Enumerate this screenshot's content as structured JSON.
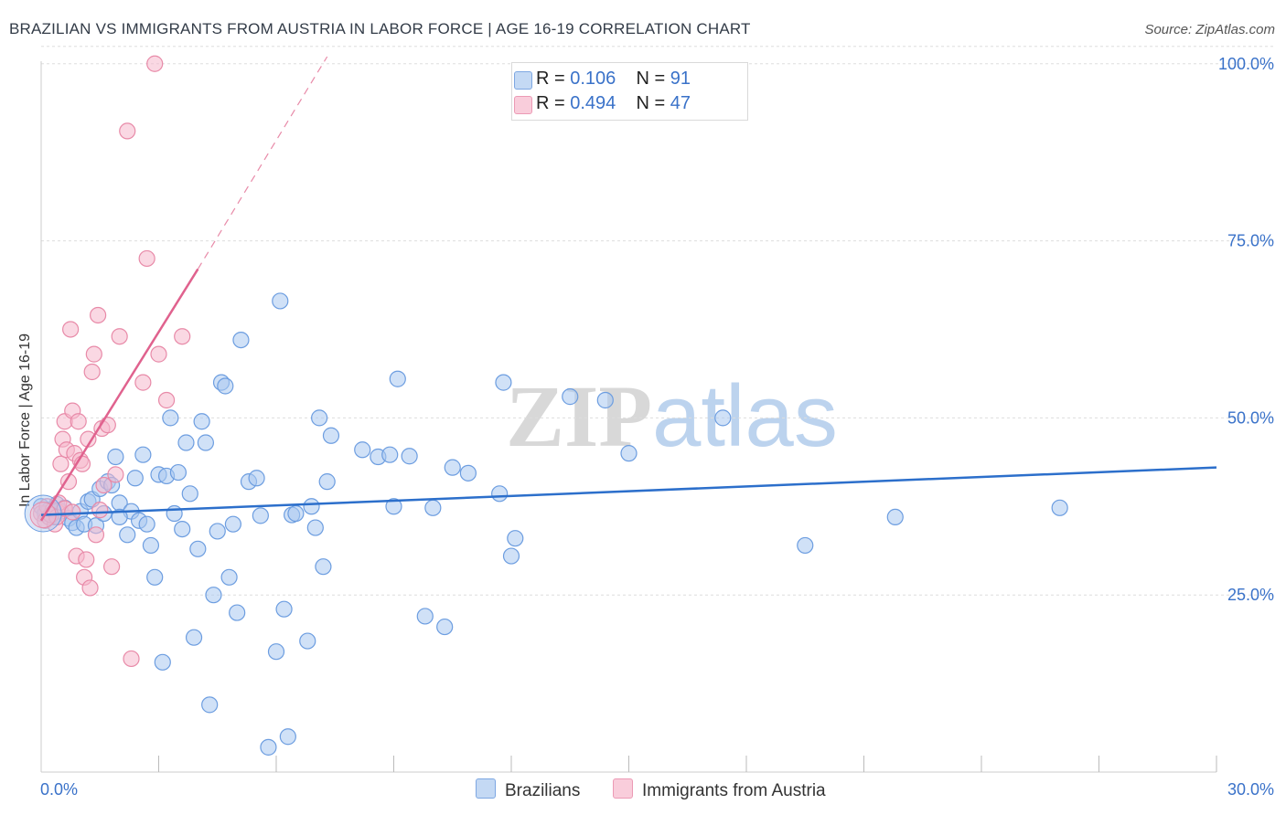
{
  "header": {
    "title": "BRAZILIAN VS IMMIGRANTS FROM AUSTRIA IN LABOR FORCE | AGE 16-19 CORRELATION CHART",
    "source": "Source: ZipAtlas.com"
  },
  "watermark": {
    "part1": "ZIP",
    "part2": "atlas"
  },
  "legend": {
    "rows": [
      {
        "r_label": "R =",
        "r_value": "0.106",
        "n_label": "N =",
        "n_value": "91"
      },
      {
        "r_label": "R =",
        "r_value": "0.494",
        "n_label": "N =",
        "n_value": "47"
      }
    ]
  },
  "bottom_legend": {
    "series1": "Brazilians",
    "series2": "Immigrants from Austria"
  },
  "colors": {
    "blue_fill": "#a9c8f0",
    "blue_stroke": "#6c9de0",
    "blue_line": "#2c6fcb",
    "pink_fill": "#f6b8cc",
    "pink_stroke": "#e88aa8",
    "pink_line": "#e0628e",
    "grid": "#dddddd",
    "tick_text": "#3a72c9"
  },
  "chart_data": {
    "type": "scatter",
    "ylabel": "In Labor Force | Age 16-19",
    "xlim": [
      0,
      30
    ],
    "ylim": [
      0,
      101
    ],
    "x_tick_labels": [
      "0.0%",
      "30.0%"
    ],
    "y_ticks": [
      25,
      50,
      75,
      100
    ],
    "y_tick_labels": [
      "25.0%",
      "50.0%",
      "75.0%",
      "100.0%"
    ],
    "grid": "horizontal dashed",
    "legend_placement": "top-center",
    "series": [
      {
        "name": "Brazilians",
        "color": "#a9c8f0",
        "r": 0.106,
        "n": 91,
        "trend": {
          "x": [
            0,
            30
          ],
          "y": [
            36.3,
            43.0
          ]
        },
        "points": [
          [
            0.0,
            37.5
          ],
          [
            0.1,
            36.5
          ],
          [
            0.2,
            37.0
          ],
          [
            0.3,
            36.0
          ],
          [
            0.4,
            37.8
          ],
          [
            0.5,
            36.8
          ],
          [
            0.6,
            37.3
          ],
          [
            0.7,
            35.8
          ],
          [
            0.8,
            35.2
          ],
          [
            0.9,
            34.5
          ],
          [
            1.0,
            36.8
          ],
          [
            1.1,
            35.0
          ],
          [
            1.2,
            38.2
          ],
          [
            1.3,
            38.5
          ],
          [
            1.4,
            34.8
          ],
          [
            1.5,
            40.0
          ],
          [
            1.6,
            36.5
          ],
          [
            1.7,
            41.0
          ],
          [
            1.8,
            40.5
          ],
          [
            1.9,
            44.5
          ],
          [
            2.0,
            38.0
          ],
          [
            2.2,
            33.5
          ],
          [
            2.3,
            36.8
          ],
          [
            2.4,
            41.5
          ],
          [
            2.5,
            35.5
          ],
          [
            2.6,
            44.8
          ],
          [
            2.7,
            35.0
          ],
          [
            2.8,
            32.0
          ],
          [
            2.9,
            27.5
          ],
          [
            3.0,
            42.0
          ],
          [
            3.1,
            15.5
          ],
          [
            3.2,
            41.8
          ],
          [
            3.3,
            50.0
          ],
          [
            3.4,
            36.5
          ],
          [
            3.5,
            42.3
          ],
          [
            3.6,
            34.3
          ],
          [
            3.7,
            46.5
          ],
          [
            3.8,
            39.3
          ],
          [
            3.9,
            19.0
          ],
          [
            4.0,
            31.5
          ],
          [
            4.1,
            49.5
          ],
          [
            4.2,
            46.5
          ],
          [
            4.3,
            9.5
          ],
          [
            4.4,
            25.0
          ],
          [
            4.5,
            34.0
          ],
          [
            4.6,
            55.0
          ],
          [
            4.7,
            54.5
          ],
          [
            4.8,
            27.5
          ],
          [
            4.9,
            35.0
          ],
          [
            5.0,
            22.5
          ],
          [
            5.1,
            61.0
          ],
          [
            5.3,
            41.0
          ],
          [
            5.5,
            41.5
          ],
          [
            5.6,
            36.2
          ],
          [
            5.8,
            3.5
          ],
          [
            6.0,
            17.0
          ],
          [
            6.1,
            66.5
          ],
          [
            6.2,
            23.0
          ],
          [
            6.3,
            5.0
          ],
          [
            6.4,
            36.3
          ],
          [
            6.5,
            36.5
          ],
          [
            6.8,
            18.5
          ],
          [
            6.9,
            37.5
          ],
          [
            7.0,
            34.5
          ],
          [
            7.1,
            50.0
          ],
          [
            7.2,
            29.0
          ],
          [
            7.3,
            41.0
          ],
          [
            7.4,
            47.5
          ],
          [
            8.2,
            45.5
          ],
          [
            8.6,
            44.5
          ],
          [
            8.9,
            44.8
          ],
          [
            9.0,
            37.5
          ],
          [
            9.1,
            55.5
          ],
          [
            9.4,
            44.6
          ],
          [
            9.8,
            22.0
          ],
          [
            10.0,
            37.3
          ],
          [
            10.3,
            20.5
          ],
          [
            10.5,
            43.0
          ],
          [
            10.9,
            42.2
          ],
          [
            11.7,
            39.3
          ],
          [
            11.8,
            55.0
          ],
          [
            12.0,
            30.5
          ],
          [
            12.1,
            33.0
          ],
          [
            13.5,
            53.0
          ],
          [
            14.4,
            52.5
          ],
          [
            15.0,
            45.0
          ],
          [
            17.4,
            50.0
          ],
          [
            19.5,
            32.0
          ],
          [
            21.8,
            36.0
          ],
          [
            26.0,
            37.3
          ],
          [
            2.0,
            36.0
          ]
        ]
      },
      {
        "name": "Immigrants from Austria",
        "color": "#f6b8cc",
        "r": 0.494,
        "n": 47,
        "trend": {
          "x": [
            0,
            4.0
          ],
          "y": [
            35.5,
            71.0
          ],
          "dashed_x": [
            4.0,
            7.3
          ],
          "dashed_y": [
            71.0,
            101.0
          ]
        },
        "points": [
          [
            0.0,
            36.5
          ],
          [
            0.1,
            35.5
          ],
          [
            0.15,
            37.5
          ],
          [
            0.2,
            36.0
          ],
          [
            0.3,
            37.0
          ],
          [
            0.35,
            35.0
          ],
          [
            0.4,
            36.8
          ],
          [
            0.45,
            38.0
          ],
          [
            0.5,
            43.5
          ],
          [
            0.55,
            47.0
          ],
          [
            0.6,
            49.5
          ],
          [
            0.65,
            45.5
          ],
          [
            0.7,
            41.0
          ],
          [
            0.75,
            62.5
          ],
          [
            0.8,
            51.0
          ],
          [
            0.85,
            45.0
          ],
          [
            0.9,
            30.5
          ],
          [
            0.95,
            49.5
          ],
          [
            1.0,
            44.0
          ],
          [
            1.05,
            43.5
          ],
          [
            1.1,
            27.5
          ],
          [
            1.15,
            30.0
          ],
          [
            1.2,
            47.0
          ],
          [
            1.25,
            26.0
          ],
          [
            1.3,
            56.5
          ],
          [
            1.35,
            59.0
          ],
          [
            1.4,
            33.5
          ],
          [
            1.45,
            64.5
          ],
          [
            1.5,
            37.0
          ],
          [
            1.55,
            48.5
          ],
          [
            1.6,
            40.5
          ],
          [
            1.7,
            49.0
          ],
          [
            1.8,
            29.0
          ],
          [
            1.9,
            42.0
          ],
          [
            2.0,
            61.5
          ],
          [
            2.2,
            90.5
          ],
          [
            2.3,
            16.0
          ],
          [
            2.6,
            55.0
          ],
          [
            2.7,
            72.5
          ],
          [
            2.9,
            100.0
          ],
          [
            3.0,
            59.0
          ],
          [
            3.2,
            52.5
          ],
          [
            3.6,
            61.5
          ],
          [
            0.25,
            36.3
          ],
          [
            0.4,
            36.0
          ],
          [
            0.6,
            37.2
          ],
          [
            0.8,
            36.7
          ]
        ]
      }
    ]
  }
}
